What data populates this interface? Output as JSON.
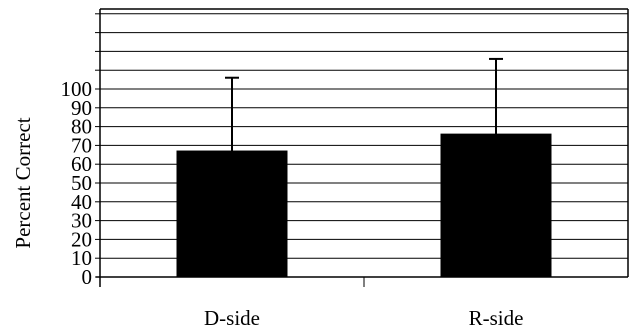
{
  "chart_data": {
    "type": "bar",
    "title": "",
    "xlabel": "",
    "ylabel": "Percent Correct",
    "categories": [
      "D-side",
      "R-side"
    ],
    "values": [
      67,
      76
    ],
    "error_upper": [
      106,
      116
    ],
    "ylim": [
      0,
      100
    ],
    "yticks": [
      0,
      10,
      20,
      30,
      40,
      50,
      60,
      70,
      80,
      90,
      100
    ],
    "grid": true,
    "legend": "none",
    "bar_color": "#000000"
  }
}
